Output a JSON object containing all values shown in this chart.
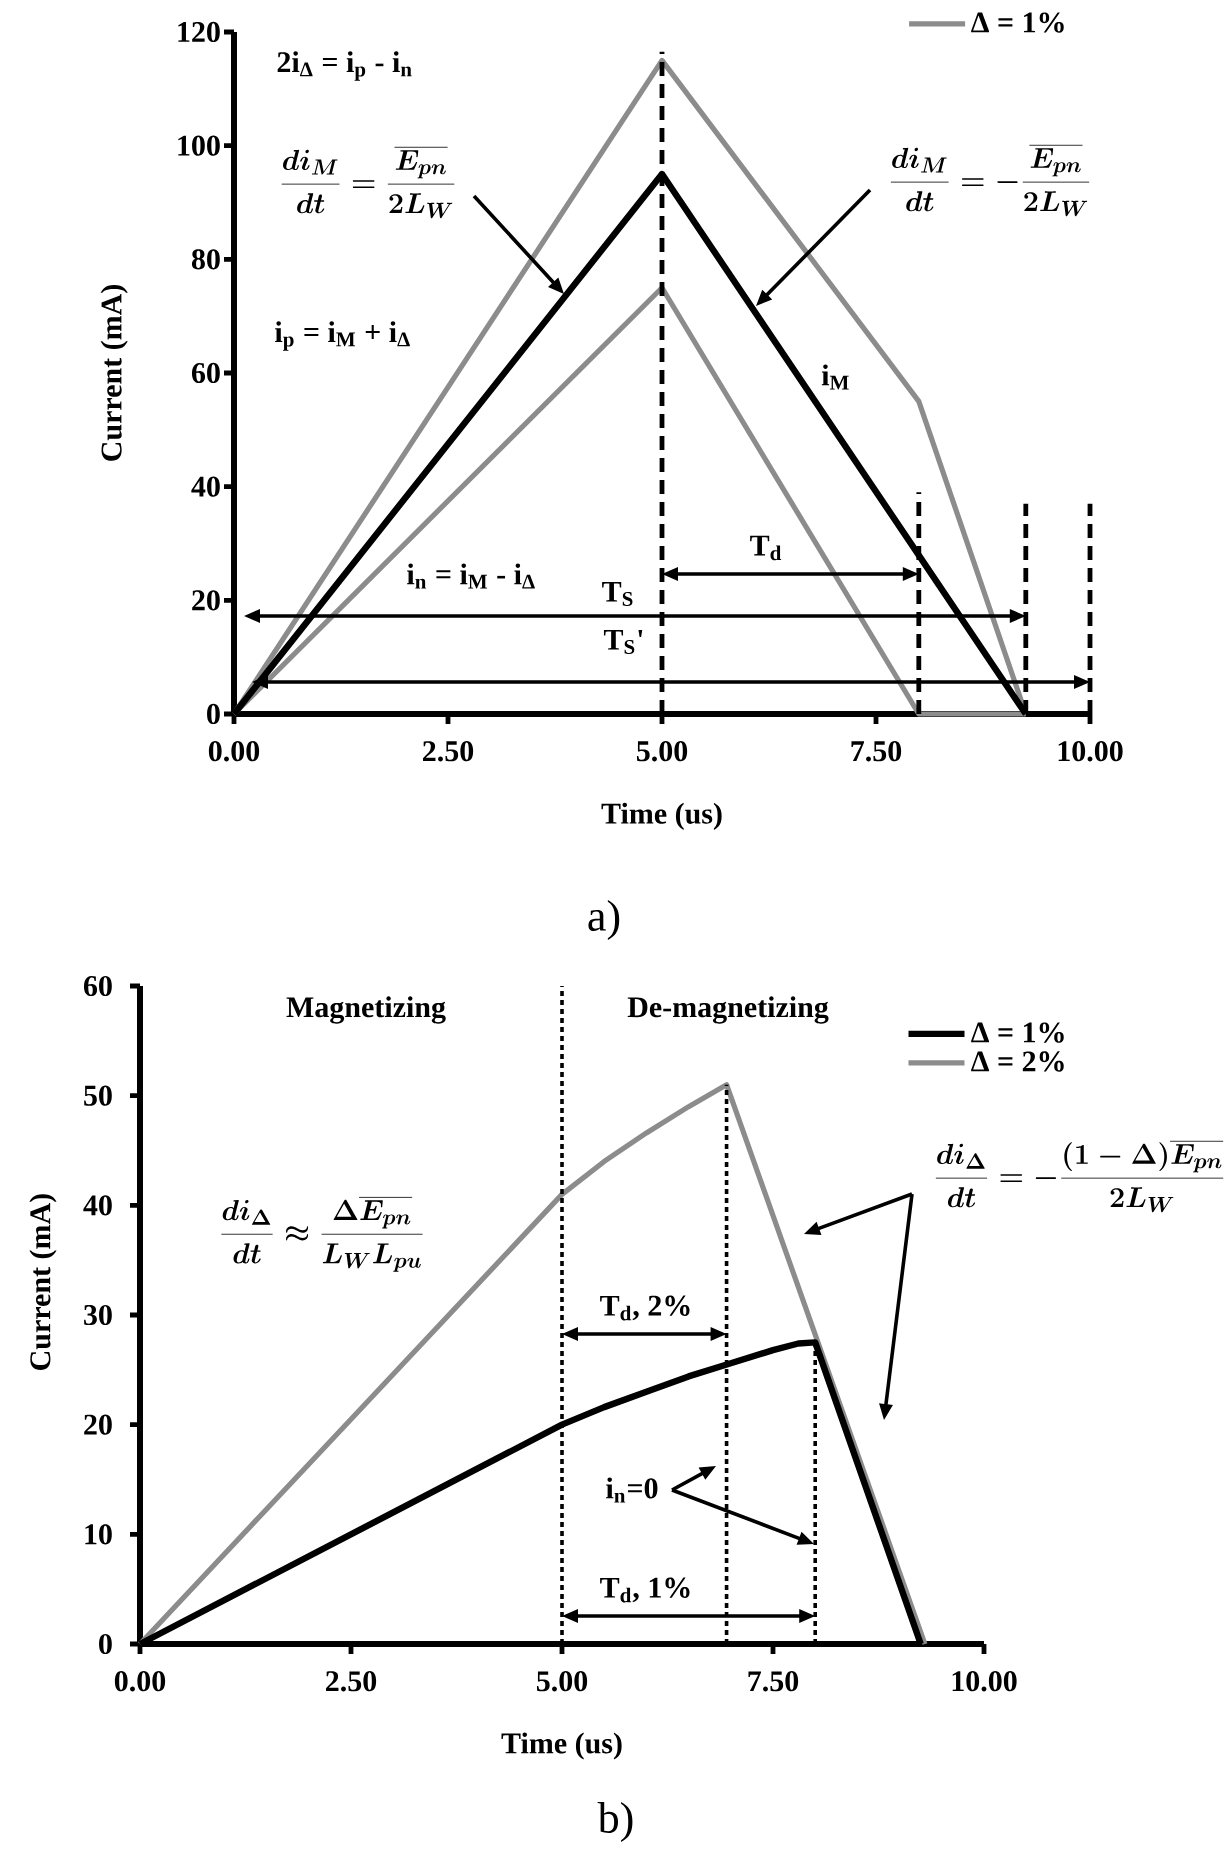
{
  "chart_data": [
    {
      "type": "line",
      "xlabel": "Time (us)",
      "ylabel": "Current (mA)",
      "xlim": [
        0,
        10
      ],
      "ylim": [
        0,
        120
      ],
      "xticks": [
        {
          "value": 0,
          "label": "0.00"
        },
        {
          "value": 2.5,
          "label": "2.50"
        },
        {
          "value": 5,
          "label": "5.00"
        },
        {
          "value": 7.5,
          "label": "7.50"
        },
        {
          "value": 10,
          "label": "10.00"
        }
      ],
      "yticks": [
        0,
        20,
        40,
        60,
        80,
        100,
        120
      ],
      "legend": "top right",
      "series": [
        {
          "name": "Δ = 1%",
          "color": "#8c8c8c",
          "x": [
            0,
            5,
            8,
            9.25
          ],
          "values": [
            0,
            115,
            55,
            0
          ]
        },
        {
          "name": "i$_{M}$",
          "color": "#000000",
          "x": [
            0,
            5,
            9.25
          ],
          "values": [
            0,
            95,
            0
          ]
        },
        {
          "color": "#8c8c8c",
          "x": [
            0,
            5,
            8,
            9.25
          ],
          "values": [
            0,
            75,
            0,
            0
          ]
        }
      ],
      "ref_lines": [
        {
          "axis": "x",
          "value": 5,
          "color": "#000000",
          "line_style": "dashed"
        },
        {
          "axis": "x",
          "value": 8,
          "color": "#000000",
          "line_style": "dashed"
        },
        {
          "axis": "x",
          "value": 9.25,
          "color": "#000000",
          "line_style": "dashed"
        },
        {
          "axis": "x",
          "value": 10,
          "color": "#000000",
          "line_style": "dashed"
        }
      ],
      "annotations": [
        "2i$_{Δ}$ = i$_{p}$ - i$_{n}$",
        "\\frac{di_{M}}{dt}=\\frac{\\overline{E_{pn}}}{2L_{W}}",
        "\\frac{di_{M}}{dt}=-\\frac{\\overline{E_{pn}}}{2L_{W}}",
        "i$_{p}$ = i$_{M}$ + i$_{Δ}$",
        "i$_{n}$ = i$_{M}$ - i$_{Δ}$",
        "T$_{d}$",
        "T$_{S}$",
        "T$_{S}$'",
        "a)"
      ]
    },
    {
      "type": "line",
      "xlabel": "Time (us)",
      "ylabel": "Current (mA)",
      "xlim": [
        0,
        10
      ],
      "ylim": [
        0,
        60
      ],
      "xticks": [
        {
          "value": 0,
          "label": "0.00"
        },
        {
          "value": 2.5,
          "label": "2.50"
        },
        {
          "value": 5,
          "label": "5.00"
        },
        {
          "value": 7.5,
          "label": "7.50"
        },
        {
          "value": 10,
          "label": "10.00"
        }
      ],
      "yticks": [
        0,
        10,
        20,
        30,
        40,
        50,
        60
      ],
      "legend": "top right",
      "series": [
        {
          "name": "Δ = 1%",
          "color": "#000000",
          "x": [
            0,
            5,
            5.5,
            6,
            6.5,
            7,
            7.5,
            7.8,
            8,
            9.25
          ],
          "values": [
            0,
            20,
            21.6,
            23,
            24.4,
            25.6,
            26.8,
            27.4,
            27.5,
            0
          ]
        },
        {
          "name": "Δ = 2%",
          "color": "#8c8c8c",
          "x": [
            0,
            2.5,
            5,
            5.5,
            6,
            6.5,
            6.95,
            9.3
          ],
          "values": [
            0,
            20.5,
            41,
            44,
            46.6,
            49,
            51,
            0
          ]
        }
      ],
      "ref_lines": [
        {
          "axis": "x",
          "value": 5,
          "color": "#000000",
          "line_style": "dotted"
        },
        {
          "axis": "x",
          "value": 6.95,
          "color": "#000000",
          "line_style": "dotted"
        },
        {
          "axis": "x",
          "value": 8,
          "color": "#000000",
          "line_style": "dotted"
        }
      ],
      "annotations": [
        "Magnetizing",
        "De-magnetizing",
        "\\frac{di_{\\Delta}}{dt}\\approx\\frac{\\Delta\\overline{E_{pn}}}{L_{W}L_{pu}}",
        "\\frac{di_{\\Delta}}{dt}=-\\frac{(1-\\Delta)\\overline{E_{pn}}}{2L_{W}}",
        "T$_{d}$, 2%",
        "i$_{n}$=0",
        "T$_{d}$, 1%",
        "b)"
      ]
    }
  ]
}
